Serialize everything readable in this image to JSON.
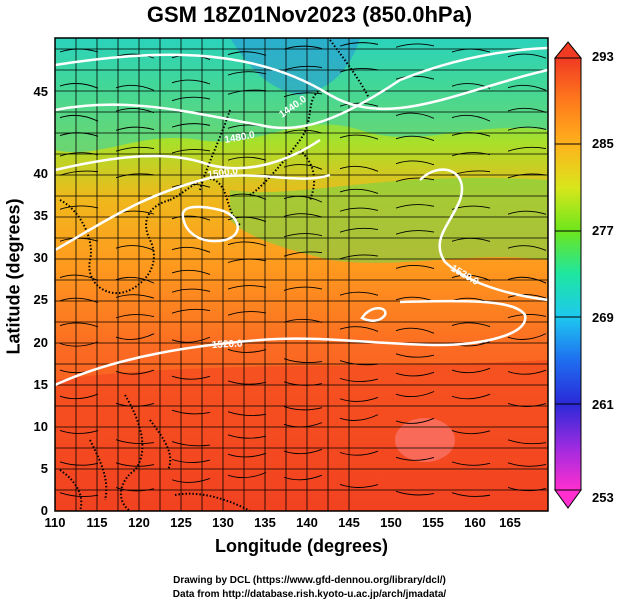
{
  "title": "GSM 18Z01Nov2023 (850.0hPa)",
  "x_axis": {
    "label": "Longitude (degrees)",
    "ticks": [
      "110",
      "115",
      "120",
      "125",
      "130",
      "135",
      "140",
      "145",
      "150",
      "155",
      "160",
      "165"
    ]
  },
  "y_axis": {
    "label": "Latitude  (degrees)",
    "ticks": [
      "0",
      "5",
      "10",
      "15",
      "20",
      "25",
      "30",
      "35",
      "40",
      "45"
    ]
  },
  "colorbar": {
    "ticks": [
      "253",
      "261",
      "269",
      "277",
      "285",
      "293"
    ],
    "colors": [
      "#ff2fd0",
      "#8a2be2",
      "#1f3fe0",
      "#22a0ff",
      "#1ee6d6",
      "#33e680",
      "#7be01c",
      "#e6e01c",
      "#ffb21c",
      "#ff7a1c",
      "#f04422"
    ]
  },
  "contour_labels": [
    "1440.0",
    "1480.0",
    "1500.0",
    "1520.0",
    "1520.0"
  ],
  "credits": {
    "line1": "Drawing by DCL (https://www.gfd-dennou.org/library/dcl/)",
    "line2": "Data from http://database.rish.kyoto-u.ac.jp/arch/jmadata/"
  }
}
